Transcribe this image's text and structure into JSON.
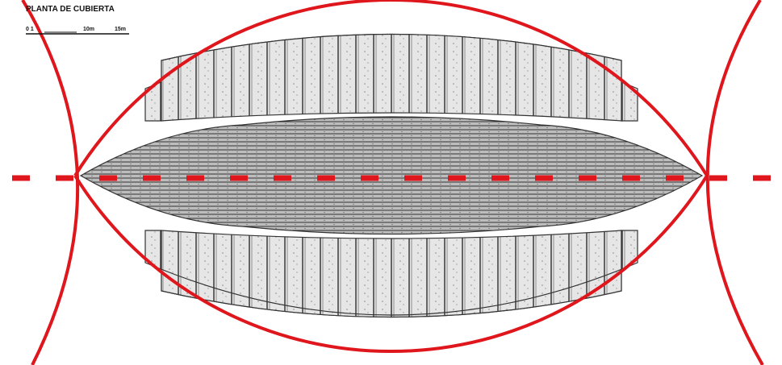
{
  "title": "PLANTA DE CUBIERTA",
  "scale": {
    "labels": [
      "0 1",
      "10m",
      "15m"
    ]
  }
}
